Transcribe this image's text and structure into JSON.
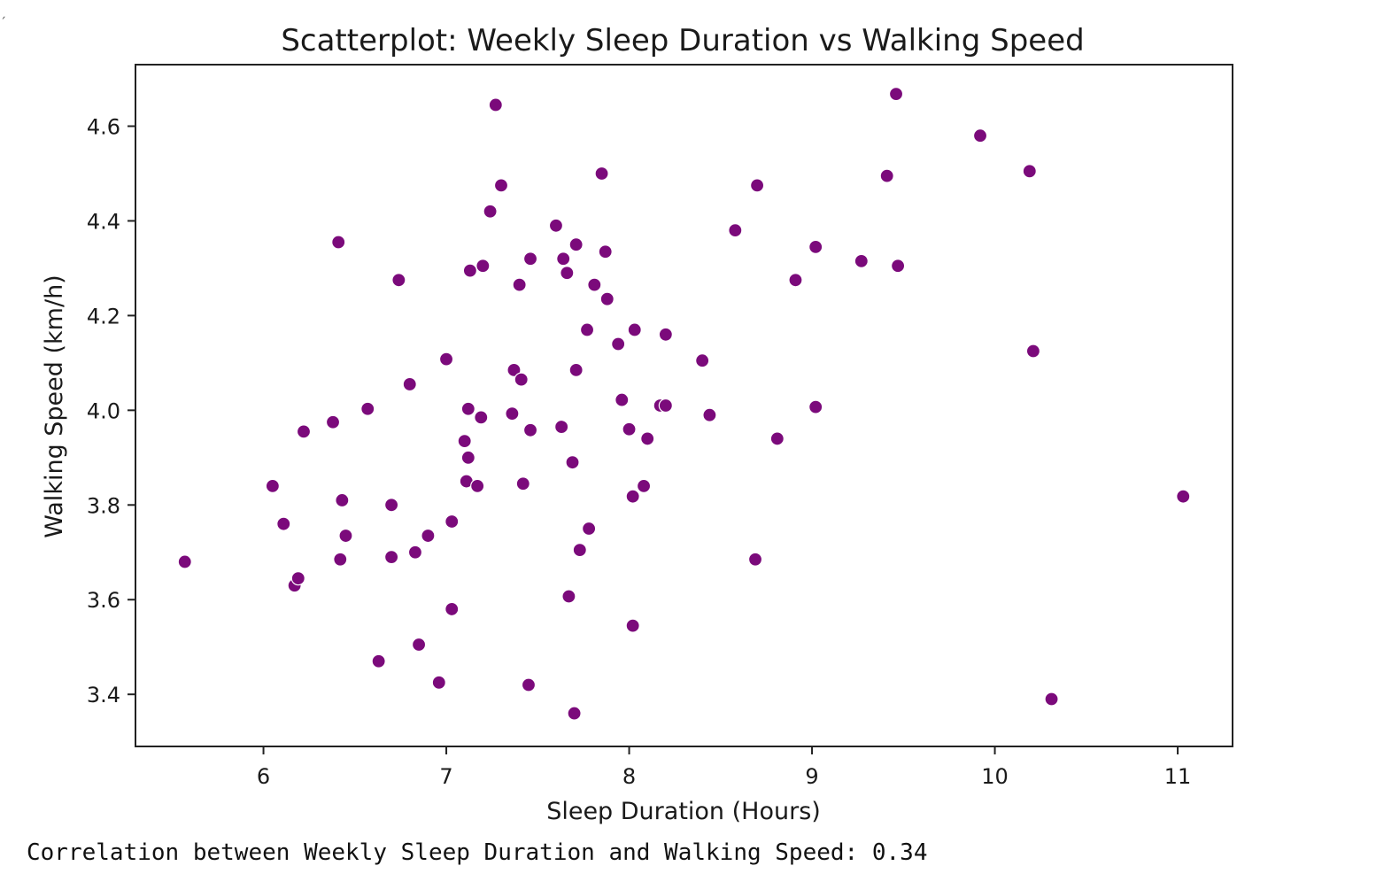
{
  "corner_mark": "ˏ",
  "chart_data": {
    "type": "scatter",
    "title": "Scatterplot: Weekly Sleep Duration vs Walking Speed",
    "xlabel": "Sleep Duration (Hours)",
    "ylabel": "Walking Speed (km/h)",
    "xlim": [
      5.3,
      11.3
    ],
    "ylim": [
      3.29,
      4.73
    ],
    "xticks": [
      6,
      7,
      8,
      9,
      10,
      11
    ],
    "yticks": [
      3.4,
      3.6,
      3.8,
      4.0,
      4.2,
      4.4,
      4.6
    ],
    "ytick_labels": [
      "3.4",
      "3.6",
      "3.8",
      "4.0",
      "4.2",
      "4.4",
      "4.6"
    ],
    "grid": false,
    "legend": "none",
    "point_color": "#7b0a7b",
    "x": [
      5.57,
      6.05,
      6.11,
      6.17,
      6.19,
      6.22,
      6.38,
      6.41,
      6.42,
      6.43,
      6.45,
      6.57,
      6.63,
      6.7,
      6.7,
      6.74,
      6.8,
      6.83,
      6.85,
      6.9,
      6.96,
      7.0,
      7.03,
      7.03,
      7.1,
      7.11,
      7.12,
      7.12,
      7.13,
      7.17,
      7.19,
      7.2,
      7.24,
      7.27,
      7.3,
      7.36,
      7.37,
      7.4,
      7.41,
      7.42,
      7.45,
      7.46,
      7.46,
      7.6,
      7.63,
      7.64,
      7.66,
      7.67,
      7.69,
      7.7,
      7.71,
      7.71,
      7.73,
      7.77,
      7.78,
      7.81,
      7.85,
      7.87,
      7.88,
      7.94,
      7.96,
      8.0,
      8.02,
      8.02,
      8.03,
      8.08,
      8.1,
      8.17,
      8.2,
      8.2,
      8.4,
      8.44,
      8.58,
      8.69,
      8.7,
      8.81,
      8.91,
      9.02,
      9.02,
      9.27,
      9.41,
      9.46,
      9.47,
      9.92,
      10.19,
      10.21,
      10.31,
      11.03
    ],
    "y": [
      3.68,
      3.84,
      3.76,
      3.63,
      3.645,
      3.955,
      3.975,
      4.355,
      3.685,
      3.81,
      3.735,
      4.003,
      3.47,
      3.69,
      3.8,
      4.275,
      4.055,
      3.7,
      3.505,
      3.735,
      3.425,
      4.108,
      3.58,
      3.765,
      3.935,
      3.85,
      3.9,
      4.003,
      4.295,
      3.84,
      3.985,
      4.305,
      4.42,
      4.645,
      4.475,
      3.993,
      4.085,
      4.265,
      4.065,
      3.845,
      3.42,
      4.32,
      3.958,
      4.39,
      3.965,
      4.32,
      4.29,
      3.607,
      3.89,
      3.36,
      4.085,
      4.35,
      3.705,
      4.17,
      3.75,
      4.265,
      4.5,
      4.335,
      4.235,
      4.14,
      4.022,
      3.96,
      3.545,
      3.818,
      4.17,
      3.84,
      3.94,
      4.01,
      4.16,
      4.01,
      4.105,
      3.99,
      4.38,
      3.685,
      4.475,
      3.94,
      4.275,
      4.345,
      4.007,
      4.315,
      4.495,
      4.668,
      4.305,
      4.58,
      4.505,
      4.125,
      3.39,
      3.818
    ]
  },
  "output_text": "Correlation between Weekly Sleep Duration and Walking Speed: 0.34"
}
